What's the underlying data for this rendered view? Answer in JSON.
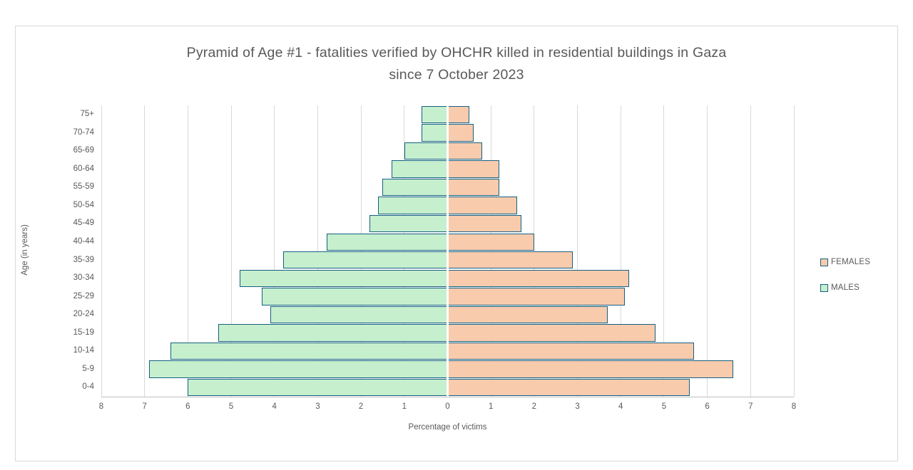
{
  "chart_data": {
    "type": "bar",
    "subtype": "population-pyramid",
    "title": "Pyramid of Age #1 - fatalities verified by OHCHR killed in residential buildings in Gaza since 7 October 2023",
    "title_lines": [
      "Pyramid of Age #1 - fatalities verified by OHCHR killed in residential buildings in Gaza",
      "since 7 October 2023"
    ],
    "xlabel": "Percentage of victims",
    "ylabel": "Age (in years)",
    "categories_top_to_bottom": [
      "75+",
      "70-74",
      "65-69",
      "60-64",
      "55-59",
      "50-54",
      "45-49",
      "40-44",
      "35-39",
      "30-34",
      "25-29",
      "20-24",
      "15-19",
      "10-14",
      "5-9",
      "0-4"
    ],
    "series": [
      {
        "name": "MALES",
        "side": "left",
        "color": "#c6efce",
        "values_top_to_bottom": [
          0.6,
          0.6,
          1.0,
          1.3,
          1.5,
          1.6,
          1.8,
          2.8,
          3.8,
          4.8,
          4.3,
          4.1,
          5.3,
          6.4,
          6.9,
          6.0
        ]
      },
      {
        "name": "FEMALES",
        "side": "right",
        "color": "#f8cbad",
        "values_top_to_bottom": [
          0.5,
          0.6,
          0.8,
          1.2,
          1.2,
          1.6,
          1.7,
          2.0,
          2.9,
          4.2,
          4.1,
          3.7,
          4.8,
          5.7,
          6.6,
          5.6
        ]
      }
    ],
    "x_axis": {
      "min": -8,
      "max": 8,
      "tick_step": 1,
      "tick_labels": [
        "8",
        "7",
        "6",
        "5",
        "4",
        "3",
        "2",
        "1",
        "0",
        "1",
        "2",
        "3",
        "4",
        "5",
        "6",
        "7",
        "8"
      ]
    },
    "legend": {
      "position": "right",
      "entries": [
        {
          "label": "FEMALES",
          "color": "#f8cbad"
        },
        {
          "label": "MALES",
          "color": "#c6efce"
        }
      ]
    },
    "grid": "vertical-on",
    "colors": {
      "bar_border": "#156082",
      "gridline": "#d9d9d9",
      "text": "#595959",
      "frame_border": "#d9d9d9",
      "background": "#ffffff"
    }
  }
}
